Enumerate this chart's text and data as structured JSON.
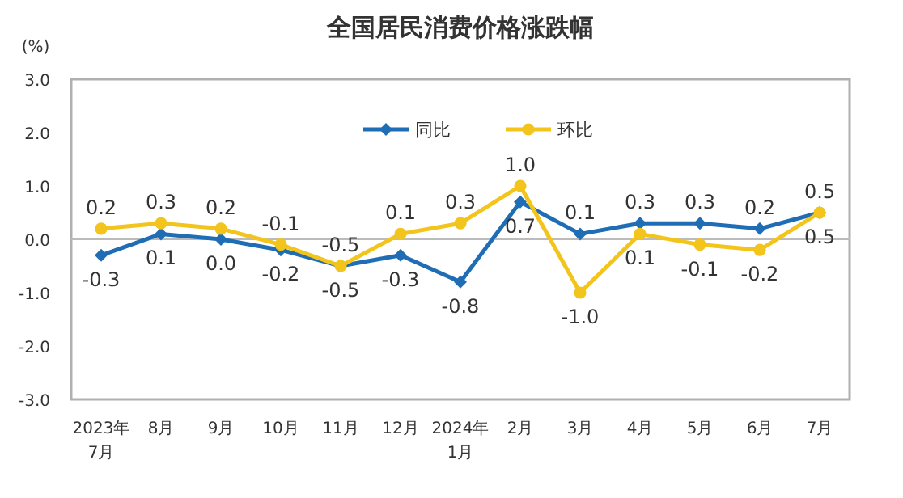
{
  "chart_data": {
    "type": "line",
    "title": "全国居民消费价格涨跌幅",
    "ylabel": "(%)",
    "categories": [
      "2023年\n7月",
      "8月",
      "9月",
      "10月",
      "11月",
      "12月",
      "2024年\n1月",
      "2月",
      "3月",
      "4月",
      "5月",
      "6月",
      "7月"
    ],
    "series": [
      {
        "name": "同比",
        "color": "#1f6db5",
        "marker": "diamond",
        "values": [
          -0.3,
          0.1,
          0.0,
          -0.2,
          -0.5,
          -0.3,
          -0.8,
          0.7,
          0.1,
          0.3,
          0.3,
          0.2,
          0.5
        ],
        "value_labels": [
          "-0.3",
          "0.1",
          "0.0",
          "-0.2",
          "-0.5",
          "-0.3",
          "-0.8",
          "0.7",
          "0.1",
          "0.3",
          "0.3",
          "0.2",
          "0.5"
        ]
      },
      {
        "name": "环比",
        "color": "#f2c41c",
        "marker": "circle",
        "values": [
          0.2,
          0.3,
          0.2,
          -0.1,
          -0.5,
          0.1,
          0.3,
          1.0,
          -1.0,
          0.1,
          -0.1,
          -0.2,
          0.5
        ],
        "value_labels": [
          "0.2",
          "0.3",
          "0.2",
          "-0.1",
          "-0.5",
          "0.1",
          "0.3",
          "1.0",
          "-1.0",
          "0.1",
          "-0.1",
          "-0.2",
          "0.5"
        ]
      }
    ],
    "ylim": [
      -3,
      3
    ],
    "yticks": [
      {
        "value": -3,
        "label": "-3.0"
      },
      {
        "value": -2,
        "label": "-2.0"
      },
      {
        "value": -1,
        "label": "-1.0"
      },
      {
        "value": 0,
        "label": "0.0"
      },
      {
        "value": 1,
        "label": "1.0"
      },
      {
        "value": 2,
        "label": "2.0"
      },
      {
        "value": 3,
        "label": "3.0"
      }
    ],
    "ref_lines": [
      {
        "axis": "y",
        "value": 0,
        "color": "#bbbbbb"
      }
    ],
    "legend": "top",
    "grid": false
  }
}
